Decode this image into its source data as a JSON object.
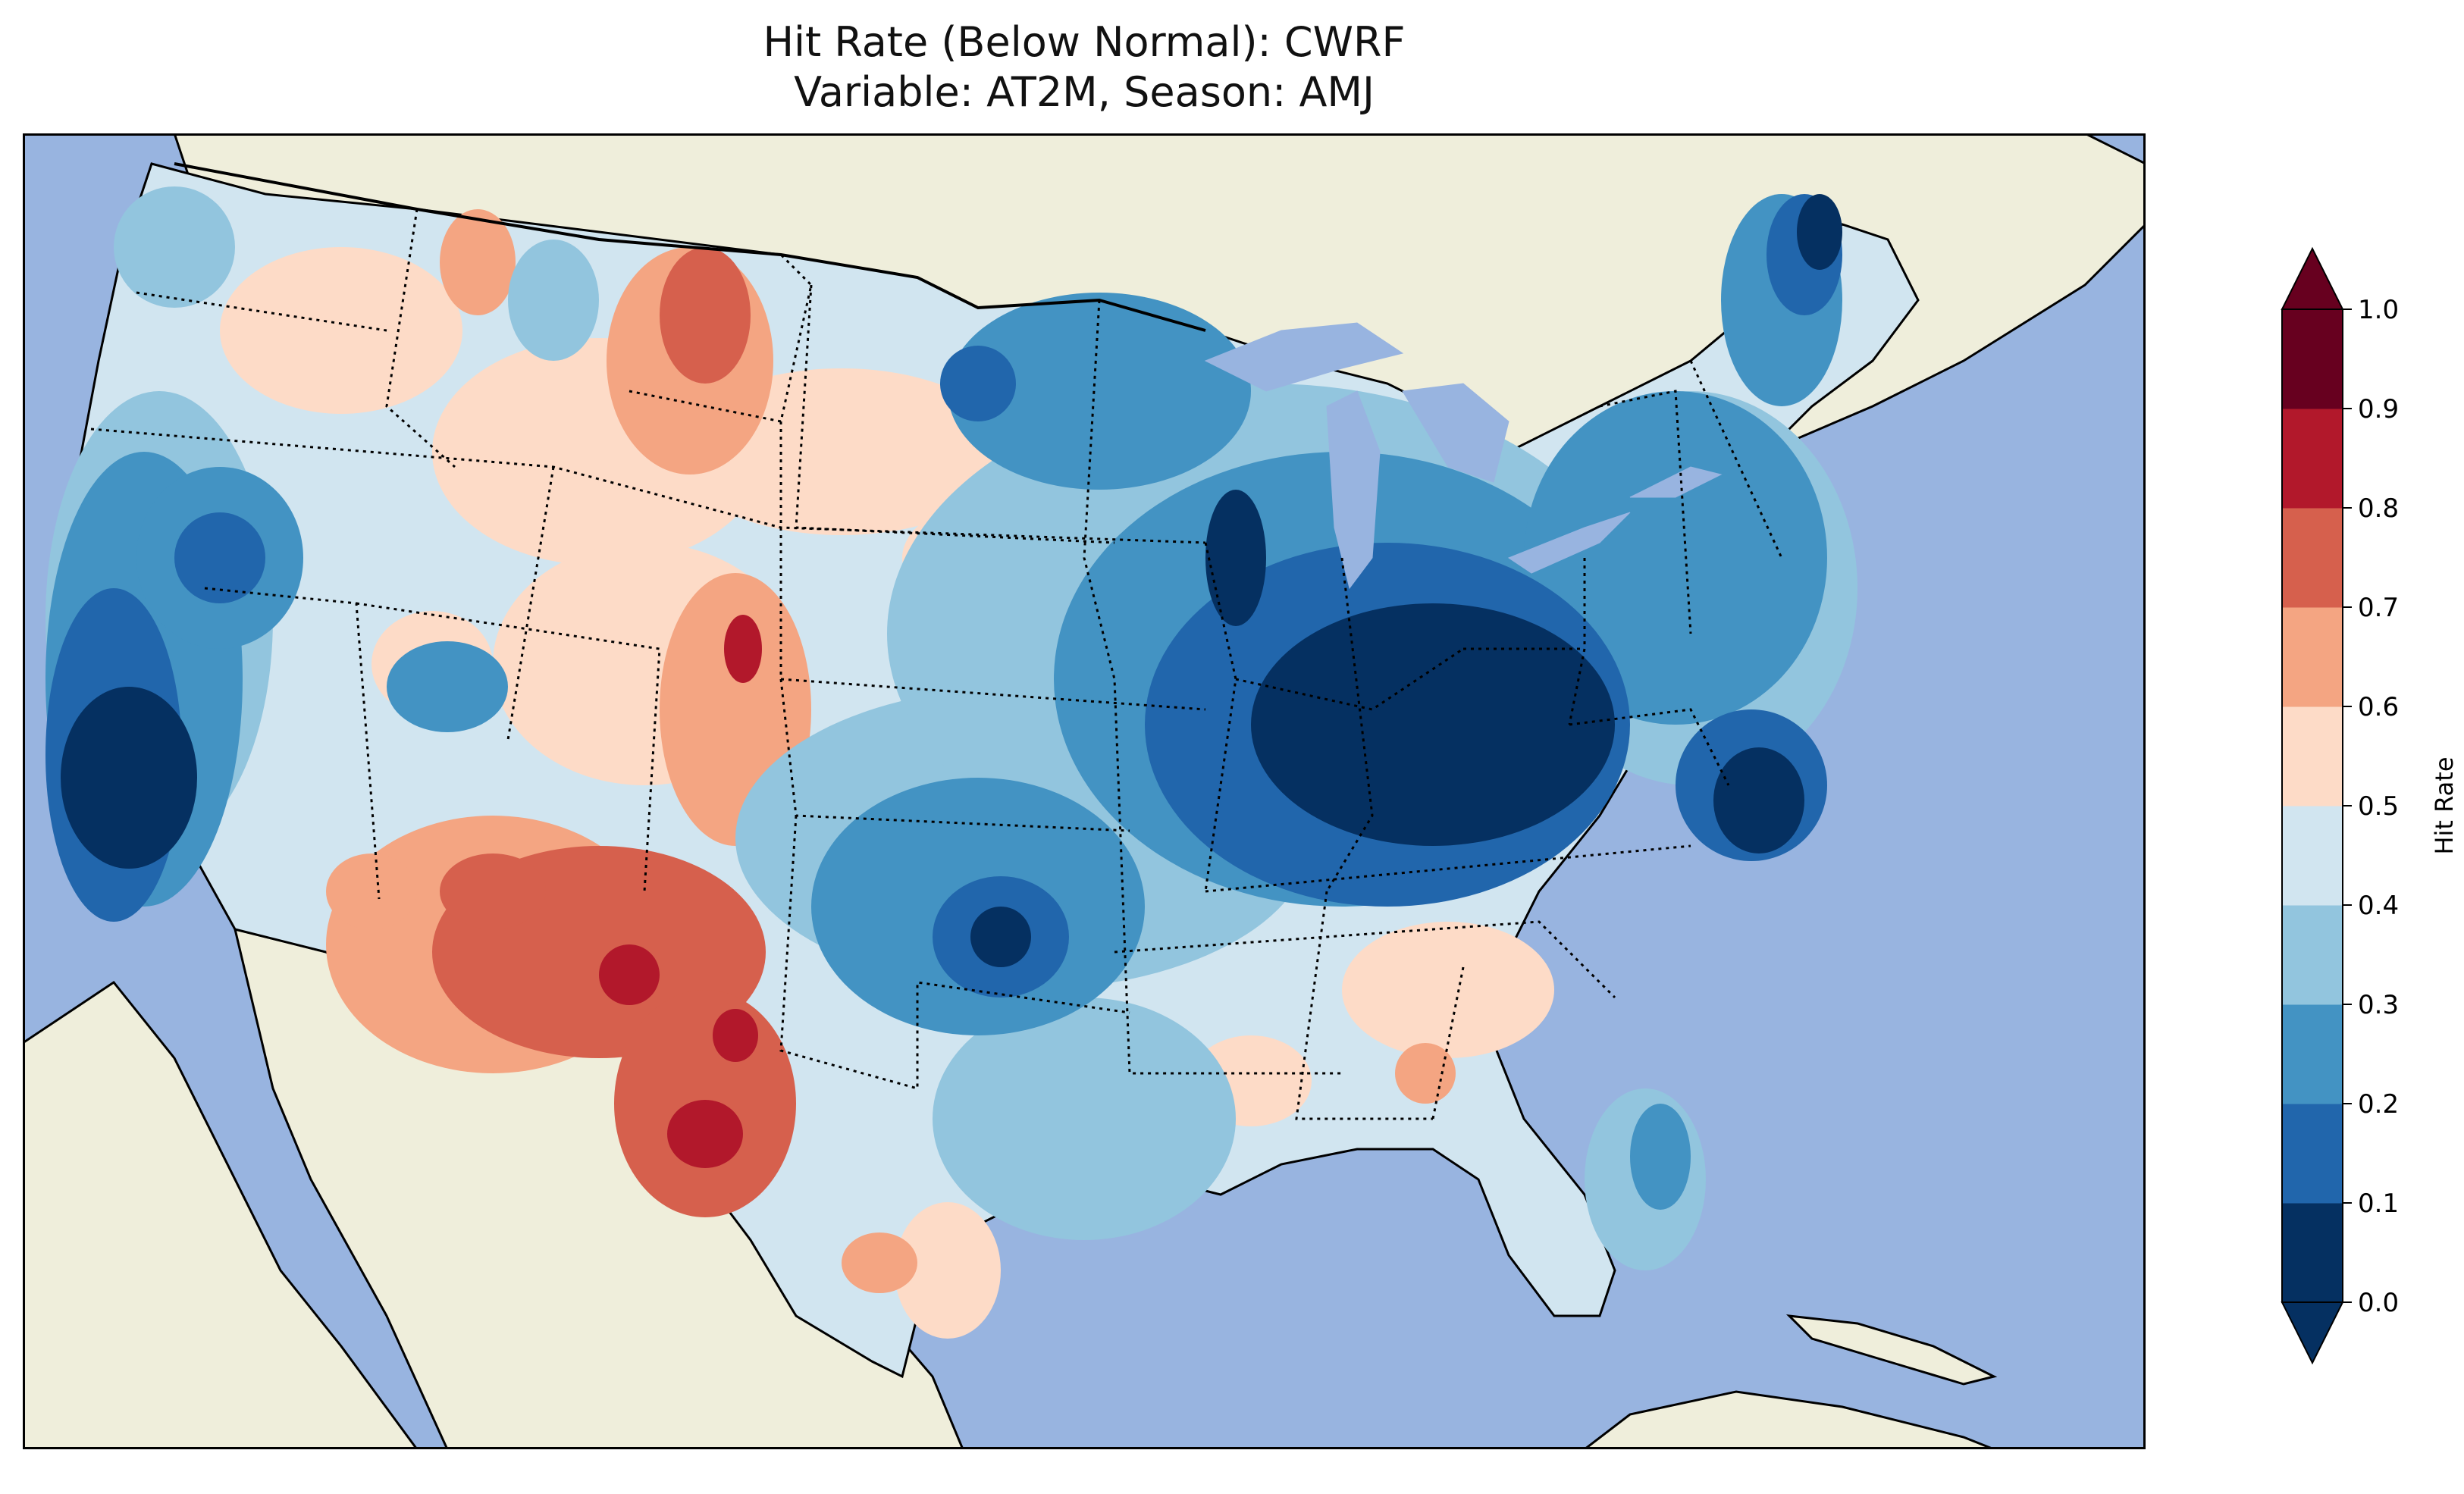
{
  "title": {
    "line1": "Hit Rate (Below Normal): CWRF",
    "line2": "Variable: AT2M, Season: AMJ"
  },
  "colorbar": {
    "label": "Hit Rate",
    "ticks": [
      "0.0",
      "0.1",
      "0.2",
      "0.3",
      "0.4",
      "0.5",
      "0.6",
      "0.7",
      "0.8",
      "0.9",
      "1.0"
    ],
    "colors": [
      "#053061",
      "#2166ac",
      "#4393c3",
      "#92c5de",
      "#d1e5f0",
      "#fddbc7",
      "#f4a582",
      "#d6604d",
      "#b2182b",
      "#67001f"
    ],
    "extend": "both"
  },
  "map": {
    "ocean_color": "#98b4e0",
    "land_color": "#efeedb",
    "region": "Contiguous United States"
  }
}
